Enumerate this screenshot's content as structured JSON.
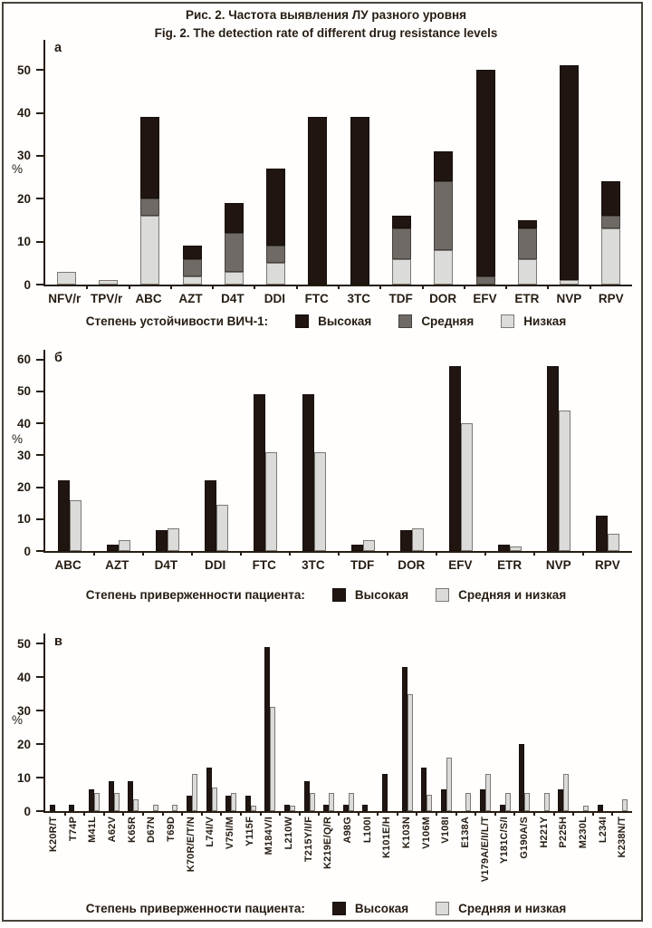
{
  "figure": {
    "title_ru": "Рис. 2. Частота выявления ЛУ разного уровня",
    "title_en": "Fig. 2. The detection rate of different drug resistance levels"
  },
  "colors": {
    "high": "#201511",
    "medium": "#6f6a66",
    "low": "#dbdbd9",
    "text": "#261c12",
    "frame": "#4a4238"
  },
  "chart_data": [
    {
      "id": "a",
      "panel_label": "а",
      "type": "bar",
      "subtype": "stacked",
      "grid": false,
      "ylabel": "%",
      "yticks": [
        0,
        10,
        20,
        30,
        40,
        50
      ],
      "ylim": [
        0,
        57
      ],
      "legend_position": "bottom",
      "legend_label": "Степень устойчивости  ВИЧ-1:",
      "categories": [
        "NFV/r",
        "TPV/r",
        "ABC",
        "AZT",
        "D4T",
        "DDI",
        "FTC",
        "3TC",
        "TDF",
        "DOR",
        "EFV",
        "ETR",
        "NVP",
        "RPV"
      ],
      "series": [
        {
          "name": "Высокая",
          "role": "high",
          "values": [
            0,
            0,
            19,
            3,
            7,
            18,
            39,
            39,
            3,
            7,
            48,
            2,
            50,
            8
          ]
        },
        {
          "name": "Средняя",
          "role": "medium",
          "values": [
            0,
            0,
            4,
            4,
            9,
            4,
            0,
            0,
            7,
            16,
            2,
            7,
            0,
            3
          ]
        },
        {
          "name": "Низкая",
          "role": "low",
          "values": [
            3,
            1,
            16,
            2,
            3,
            5,
            0,
            0,
            6,
            8,
            0,
            6,
            1,
            13
          ]
        }
      ],
      "stack_bottom_to_top": [
        "Низкая",
        "Средняя",
        "Высокая"
      ],
      "bar_totals": [
        3,
        1,
        39,
        9,
        19,
        27,
        39,
        39,
        16,
        31,
        50,
        15,
        51,
        24
      ]
    },
    {
      "id": "b",
      "panel_label": "б",
      "type": "bar",
      "subtype": "grouped",
      "grid": false,
      "ylabel": "%",
      "yticks": [
        0,
        10,
        20,
        30,
        40,
        50,
        60
      ],
      "ylim": [
        0,
        63
      ],
      "legend_position": "bottom",
      "legend_label": "Степень приверженности пациента:",
      "categories": [
        "ABC",
        "AZT",
        "D4T",
        "DDI",
        "FTC",
        "3TC",
        "TDF",
        "DOR",
        "EFV",
        "ETR",
        "NVP",
        "RPV"
      ],
      "series": [
        {
          "name": "Высокая",
          "role": "high",
          "values": [
            22,
            2,
            6.5,
            22,
            49,
            49,
            2,
            6.5,
            58,
            2,
            58,
            11
          ]
        },
        {
          "name": "Средняя и низкая",
          "role": "low",
          "values": [
            16,
            3.5,
            7,
            14.5,
            31,
            31,
            3.5,
            7,
            40,
            1.5,
            44,
            5.5
          ]
        }
      ]
    },
    {
      "id": "c",
      "panel_label": "в",
      "type": "bar",
      "subtype": "grouped",
      "grid": false,
      "ylabel": "%",
      "yticks": [
        0,
        10,
        20,
        30,
        40,
        50
      ],
      "ylim": [
        0,
        53
      ],
      "legend_position": "bottom",
      "legend_label": "Степень приверженности пациента:",
      "categories": [
        "K20R/T",
        "T74P",
        "M41L",
        "A62V",
        "K65R",
        "D67N",
        "T69D",
        "K70R/E/T/N",
        "L74I/V",
        "V75I/M",
        "Y115F",
        "M184V/I",
        "L210W",
        "T215Y/I/F",
        "K219E/Q/R",
        "A98G",
        "L100I",
        "K101E/H",
        "K103N",
        "V106M",
        "V108I",
        "E138A",
        "V179A/E/I/L/T",
        "Y181C/S/I",
        "G190A/S",
        "H221Y",
        "P225H",
        "M230L",
        "L234I",
        "K238N/T"
      ],
      "series": [
        {
          "name": "Высокая",
          "role": "high",
          "values": [
            2,
            2,
            6.5,
            9,
            9,
            0,
            0,
            4.5,
            13,
            4.5,
            4.5,
            49,
            2,
            9,
            2,
            2,
            2,
            11,
            43,
            13,
            6.5,
            0,
            6.5,
            2,
            20,
            0,
            6.5,
            0,
            2,
            0
          ]
        },
        {
          "name": "Средняя и низкая",
          "role": "low",
          "values": [
            0,
            0,
            5.5,
            5.5,
            3.5,
            2,
            2,
            11,
            7,
            5.5,
            1.5,
            31,
            1.5,
            5.5,
            5.5,
            5.5,
            0,
            0,
            35,
            5,
            16,
            5.5,
            11,
            5.5,
            5.5,
            5.5,
            11,
            1.5,
            0,
            3.5
          ]
        }
      ]
    }
  ]
}
